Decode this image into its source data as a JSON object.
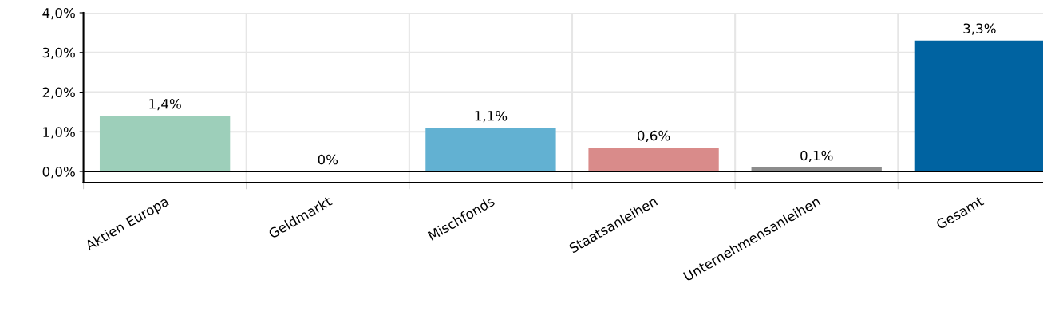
{
  "chart_data": {
    "type": "bar",
    "categories": [
      "Aktien Europa",
      "Geldmarkt",
      "Mischfonds",
      "Staatsanleihen",
      "Unternehmensanleihen",
      "Gesamt"
    ],
    "values": [
      1.4,
      0,
      1.1,
      0.6,
      0.1,
      3.3
    ],
    "colors": [
      "#9dcfba",
      "#7f7f7f",
      "#62b1d2",
      "#d98b8a",
      "#8c8c8c",
      "#0063a1"
    ],
    "value_labels": [
      "1,4%",
      "0%",
      "1,1%",
      "0,6%",
      "0,1%",
      "3,3%"
    ],
    "ylim": [
      -0.28,
      4.0
    ],
    "yticks": [
      {
        "value": 0,
        "label": "0,0%"
      },
      {
        "value": 1,
        "label": "1,0%"
      },
      {
        "value": 2,
        "label": "2,0%"
      },
      {
        "value": 3,
        "label": "3,0%"
      },
      {
        "value": 4,
        "label": "4,0%"
      }
    ],
    "ref_lines": [
      {
        "axis": "y",
        "value": 0,
        "label": null,
        "color": "#000000"
      }
    ],
    "grid": true,
    "legend": false
  }
}
